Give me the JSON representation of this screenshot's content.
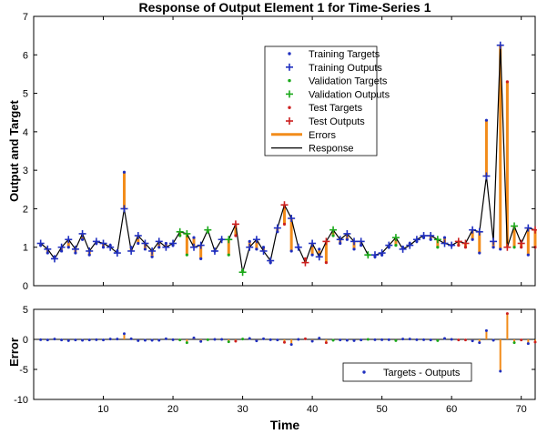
{
  "chart_data": [
    {
      "type": "line",
      "title": "Response of Output Element 1 for Time-Series 1",
      "xlabel": "",
      "ylabel": "Output and Target",
      "xlim": [
        0,
        72
      ],
      "ylim": [
        0,
        7
      ],
      "x_ticks": [
        "10",
        "20",
        "30",
        "40",
        "50",
        "60",
        "70"
      ],
      "y_ticks": [
        "0",
        "1",
        "2",
        "3",
        "4",
        "5",
        "6",
        "7"
      ],
      "grid": false,
      "legend": {
        "placement": "top-right",
        "entries": [
          "Training Targets",
          "Training Outputs",
          "Validation Targets",
          "Validation Outputs",
          "Test Targets",
          "Test Outputs",
          "Errors",
          "Response"
        ]
      },
      "x": [
        1,
        2,
        3,
        4,
        5,
        6,
        7,
        8,
        9,
        10,
        11,
        12,
        13,
        14,
        15,
        16,
        17,
        18,
        19,
        20,
        21,
        22,
        23,
        24,
        25,
        26,
        27,
        28,
        29,
        30,
        31,
        32,
        33,
        34,
        35,
        36,
        37,
        38,
        39,
        40,
        41,
        42,
        43,
        44,
        45,
        46,
        47,
        48,
        49,
        50,
        51,
        52,
        53,
        54,
        55,
        56,
        57,
        58,
        59,
        60,
        61,
        62,
        63,
        64,
        65,
        66,
        67,
        68,
        69,
        70,
        71,
        72
      ],
      "set": [
        "tr",
        "tr",
        "tr",
        "tr",
        "tr",
        "tr",
        "tr",
        "tr",
        "tr",
        "tr",
        "tr",
        "tr",
        "tr",
        "tr",
        "tr",
        "tr",
        "tr",
        "tr",
        "tr",
        "tr",
        "va",
        "va",
        "tr",
        "tr",
        "va",
        "tr",
        "tr",
        "va",
        "te",
        "va",
        "tr",
        "tr",
        "tr",
        "tr",
        "tr",
        "te",
        "tr",
        "tr",
        "te",
        "tr",
        "tr",
        "te",
        "va",
        "tr",
        "tr",
        "tr",
        "tr",
        "va",
        "tr",
        "tr",
        "tr",
        "va",
        "tr",
        "tr",
        "tr",
        "tr",
        "tr",
        "va",
        "tr",
        "tr",
        "te",
        "te",
        "tr",
        "tr",
        "tr",
        "tr",
        "tr",
        "te",
        "va",
        "te",
        "tr",
        "te"
      ],
      "series": [
        {
          "name": "Targets",
          "values": [
            1.05,
            0.85,
            0.75,
            0.9,
            1.0,
            0.85,
            1.2,
            0.8,
            1.1,
            1.0,
            1.05,
            0.9,
            2.95,
            1.0,
            1.1,
            0.95,
            0.75,
            1.0,
            1.1,
            1.05,
            1.3,
            0.8,
            1.25,
            0.7,
            1.4,
            0.9,
            1.2,
            0.8,
            1.3,
            0.4,
            1.15,
            0.95,
            1.0,
            0.6,
            1.4,
            1.6,
            0.9,
            1.0,
            0.7,
            0.8,
            0.95,
            0.6,
            1.3,
            1.1,
            1.2,
            0.95,
            1.05,
            0.8,
            0.75,
            0.8,
            1.0,
            1.05,
            1.0,
            1.1,
            1.15,
            1.25,
            1.2,
            1.0,
            1.25,
            1.05,
            1.05,
            1.0,
            1.2,
            0.85,
            4.3,
            1.0,
            0.95,
            5.3,
            1.0,
            1.0,
            0.8,
            1.0
          ]
        },
        {
          "name": "Outputs",
          "values": [
            1.1,
            0.95,
            0.7,
            1.0,
            1.2,
            0.95,
            1.35,
            0.9,
            1.15,
            1.1,
            1.0,
            0.85,
            2.0,
            0.9,
            1.3,
            1.1,
            0.9,
            1.15,
            1.0,
            1.1,
            1.4,
            1.35,
            1.0,
            1.05,
            1.45,
            0.9,
            1.2,
            1.2,
            1.6,
            0.35,
            1.0,
            1.2,
            0.9,
            0.65,
            1.5,
            2.1,
            1.75,
            1.0,
            0.6,
            1.1,
            0.75,
            1.15,
            1.45,
            1.2,
            1.35,
            1.15,
            1.15,
            0.8,
            0.8,
            0.85,
            1.05,
            1.25,
            0.95,
            1.05,
            1.2,
            1.3,
            1.3,
            1.2,
            1.1,
            1.05,
            1.15,
            1.1,
            1.45,
            1.4,
            2.85,
            1.15,
            6.25,
            1.0,
            1.55,
            1.1,
            1.5,
            1.45
          ]
        }
      ]
    },
    {
      "type": "line",
      "title": "",
      "xlabel": "Time",
      "ylabel": "Error",
      "xlim": [
        0,
        72
      ],
      "ylim": [
        -10,
        5
      ],
      "x_ticks": [
        "10",
        "20",
        "30",
        "40",
        "50",
        "60",
        "70"
      ],
      "y_ticks": [
        "5",
        "0",
        "-5",
        "-10"
      ],
      "grid": false,
      "legend": {
        "placement": "bottom-right",
        "entries": [
          "Targets - Outputs"
        ]
      }
    }
  ]
}
